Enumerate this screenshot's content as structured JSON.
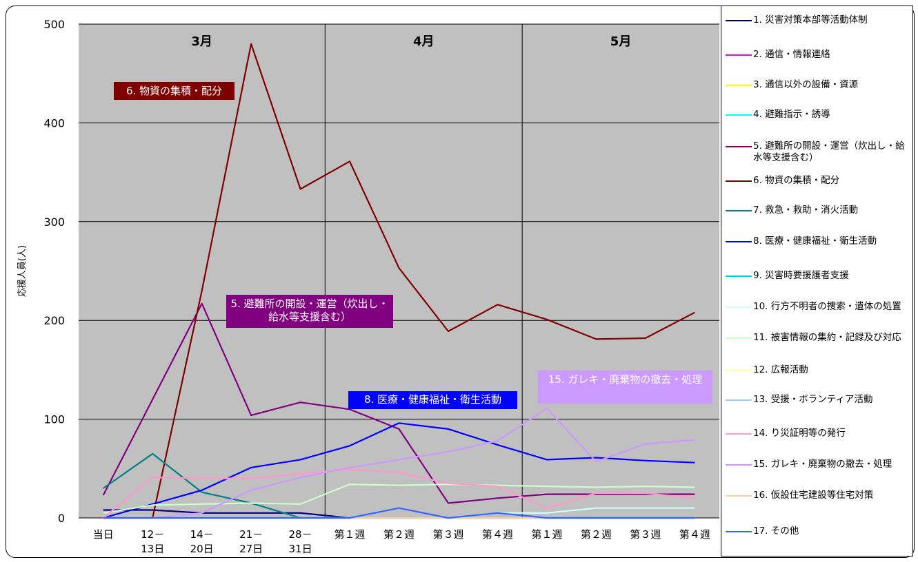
{
  "chart_data": {
    "type": "line",
    "ylabel": "応援人員(人)",
    "ylim": [
      0,
      500
    ],
    "yticks": [
      0,
      100,
      200,
      300,
      400,
      500
    ],
    "categories": [
      "当日",
      "12－\n13日",
      "14－\n20日",
      "21－\n27日",
      "28－\n31日",
      "第１週",
      "第２週",
      "第３週",
      "第４週",
      "第１週",
      "第２週",
      "第３週",
      "第４週"
    ],
    "months": [
      {
        "label": "3月",
        "start": 0,
        "end": 4
      },
      {
        "label": "4月",
        "start": 5,
        "end": 8
      },
      {
        "label": "5月",
        "start": 9,
        "end": 12
      }
    ],
    "plot_bg": "#c0c0c0",
    "grid": true,
    "legend_position": "right",
    "series": [
      {
        "name": "1. 災害対策本部等活動体制",
        "color": "#000080",
        "values": [
          8,
          8,
          5,
          5,
          5,
          0,
          0,
          0,
          0,
          0,
          0,
          0,
          0
        ]
      },
      {
        "name": "2. 通信・情報連絡",
        "color": "#ff00ff",
        "values": [
          0,
          0,
          0,
          0,
          0,
          0,
          0,
          0,
          0,
          0,
          0,
          0,
          0
        ]
      },
      {
        "name": "3. 通信以外の設備・資源",
        "color": "#ffff00",
        "values": [
          0,
          0,
          0,
          0,
          0,
          0,
          0,
          0,
          0,
          0,
          0,
          0,
          0
        ]
      },
      {
        "name": "4. 避難指示・誘導",
        "color": "#00ffff",
        "values": [
          0,
          0,
          0,
          0,
          0,
          0,
          0,
          0,
          0,
          0,
          0,
          0,
          0
        ]
      },
      {
        "name": "5. 避難所の開設・運営（炊出し・給水等支援含む）",
        "color": "#800080",
        "values": [
          23,
          120,
          217,
          104,
          117,
          110,
          90,
          15,
          20,
          24,
          24,
          24,
          24
        ]
      },
      {
        "name": "6. 物資の集積・配分",
        "color": "#800000",
        "values": [
          0,
          0,
          230,
          480,
          333,
          361,
          253,
          189,
          216,
          201,
          181,
          182,
          208
        ]
      },
      {
        "name": "7. 救急・救助・消火活動",
        "color": "#008080",
        "values": [
          30,
          65,
          26,
          15,
          0,
          0,
          0,
          0,
          0,
          0,
          0,
          0,
          0
        ]
      },
      {
        "name": "8. 医療・健康福祉・衛生活動",
        "color": "#0000ff",
        "values": [
          0,
          14,
          28,
          51,
          59,
          73,
          96,
          90,
          74,
          59,
          61,
          58,
          56
        ]
      },
      {
        "name": "9. 災害時要援護者支援",
        "color": "#00ccff",
        "values": [
          0,
          0,
          0,
          0,
          0,
          0,
          0,
          0,
          0,
          0,
          0,
          0,
          0
        ]
      },
      {
        "name": "10. 行方不明者の捜索・遺体の処置",
        "color": "#ccffff",
        "values": [
          0,
          0,
          0,
          0,
          0,
          0,
          0,
          0,
          5,
          5,
          10,
          10,
          10
        ]
      },
      {
        "name": "11. 被害情報の集約・記録及び対応",
        "color": "#ccffcc",
        "values": [
          5,
          13,
          14,
          15,
          14,
          34,
          33,
          34,
          33,
          32,
          31,
          32,
          31
        ]
      },
      {
        "name": "12. 広報活動",
        "color": "#ffff99",
        "values": [
          0,
          0,
          0,
          0,
          0,
          0,
          0,
          0,
          0,
          0,
          0,
          0,
          0
        ]
      },
      {
        "name": "13. 受援・ボランティア活動",
        "color": "#99ccff",
        "values": [
          0,
          0,
          0,
          0,
          0,
          0,
          0,
          0,
          0,
          0,
          0,
          0,
          0
        ]
      },
      {
        "name": "14. り災証明等の発行",
        "color": "#ff99cc",
        "values": [
          0,
          41,
          40,
          40,
          45,
          49,
          46,
          35,
          32,
          10,
          25,
          25,
          20
        ]
      },
      {
        "name": "15. ガレキ・廃棄物の撤去・処理",
        "color": "#cc99ff",
        "values": [
          0,
          0,
          5,
          28,
          41,
          51,
          59,
          67,
          78,
          111,
          57,
          75,
          79
        ]
      },
      {
        "name": "16. 仮設住宅建設等住宅対策",
        "color": "#ffcc99",
        "values": [
          0,
          0,
          0,
          0,
          0,
          0,
          0,
          0,
          0,
          0,
          0,
          0,
          0
        ]
      },
      {
        "name": "17. その他",
        "color": "#3366ff",
        "values": [
          0,
          0,
          0,
          0,
          0,
          0,
          10,
          0,
          5,
          0,
          0,
          0,
          0
        ]
      }
    ],
    "annotations": [
      {
        "text": "6. 物資の集積・配分",
        "bg": "#800000"
      },
      {
        "text": "5. 避難所の開設・運営（炊出し・給水等支援含む）",
        "bg": "#800080"
      },
      {
        "text": "8. 医療・健康福祉・衛生活動",
        "bg": "#0000ff"
      },
      {
        "text": "15. ガレキ・廃棄物の撤去・処理",
        "bg": "#cc99ff"
      }
    ]
  },
  "legend": {
    "items": [
      "1. 災害対策本部等活動体制",
      "2. 通信・情報連絡",
      "3. 通信以外の設備・資源",
      "4. 避難指示・誘導",
      "5. 避難所の開設・運営（炊出し・給水等支援含む）",
      "6. 物資の集積・配分",
      "7. 救急・救助・消火活動",
      "8. 医療・健康福祉・衛生活動",
      "9. 災害時要援護者支援",
      "10. 行方不明者の捜索・遺体の処置",
      "11. 被害情報の集約・記録及び対応",
      "12. 広報活動",
      "13. 受援・ボランティア活動",
      "14. り災証明等の発行",
      "15. ガレキ・廃棄物の撤去・処理",
      "16. 仮設住宅建設等住宅対策",
      "17. その他"
    ]
  }
}
